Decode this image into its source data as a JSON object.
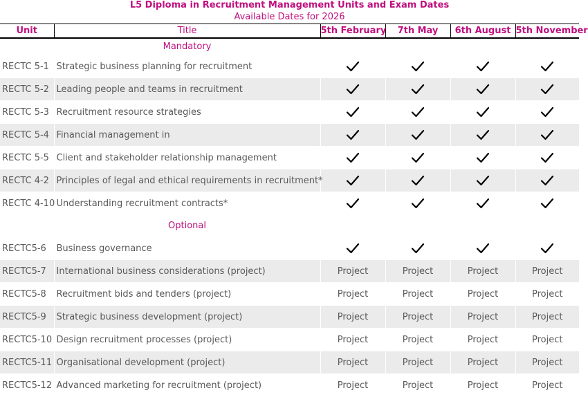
{
  "heading": {
    "title": "L5 Diploma in Recruitment Management Units and Exam Dates",
    "subtitle": "Available Dates for 2026"
  },
  "columns": [
    "Unit",
    "Title",
    "5th February",
    "7th May",
    "6th August",
    "5th November"
  ],
  "sections": [
    {
      "name": "Mandatory",
      "rows": [
        {
          "unit": "RECTC 5-1",
          "title": "Strategic business planning for recruitment",
          "dates": [
            "check",
            "check",
            "check",
            "check"
          ]
        },
        {
          "unit": "RECTC 5-2",
          "title": "Leading people and teams in recruitment",
          "dates": [
            "check",
            "check",
            "check",
            "check"
          ]
        },
        {
          "unit": "RECTC 5-3",
          "title": "Recruitment resource strategies",
          "dates": [
            "check",
            "check",
            "check",
            "check"
          ]
        },
        {
          "unit": "RECTC 5-4",
          "title": "Financial management in",
          "dates": [
            "check",
            "check",
            "check",
            "check"
          ]
        },
        {
          "unit": "RECTC 5-5",
          "title": "Client and stakeholder relationship management",
          "dates": [
            "check",
            "check",
            "check",
            "check"
          ]
        },
        {
          "unit": "RECTC 4-2",
          "title": "Principles of legal and ethical requirements in recruitment*",
          "dates": [
            "check",
            "check",
            "check",
            "check"
          ]
        },
        {
          "unit": "RECTC 4-10",
          "title": "Understanding recruitment contracts*",
          "dates": [
            "check",
            "check",
            "check",
            "check"
          ]
        }
      ]
    },
    {
      "name": "Optional",
      "rows": [
        {
          "unit": "RECTC5-6",
          "title": "Business governance",
          "dates": [
            "check",
            "check",
            "check",
            "check"
          ]
        },
        {
          "unit": "RECTC5-7",
          "title": "International business considerations (project)",
          "dates": [
            "Project",
            "Project",
            "Project",
            "Project"
          ]
        },
        {
          "unit": "RECTC5-8",
          "title": "Recruitment bids and tenders (project)",
          "dates": [
            "Project",
            "Project",
            "Project",
            "Project"
          ]
        },
        {
          "unit": "RECTC5-9",
          "title": "Strategic business development (project)",
          "dates": [
            "Project",
            "Project",
            "Project",
            "Project"
          ]
        },
        {
          "unit": "RECTC5-10",
          "title": "Design recruitment processes (project)",
          "dates": [
            "Project",
            "Project",
            "Project",
            "Project"
          ]
        },
        {
          "unit": "RECTC5-11",
          "title": "Organisational development (project)",
          "dates": [
            "Project",
            "Project",
            "Project",
            "Project"
          ]
        },
        {
          "unit": "RECTC5-12",
          "title": "Advanced marketing for recruitment (project)",
          "dates": [
            "Project",
            "Project",
            "Project",
            "Project"
          ]
        }
      ]
    }
  ],
  "colors": {
    "accent": "#c00f7f",
    "text": "#595959",
    "stripe": "#ebebeb"
  },
  "icons": {
    "check": "checkmark-icon"
  }
}
